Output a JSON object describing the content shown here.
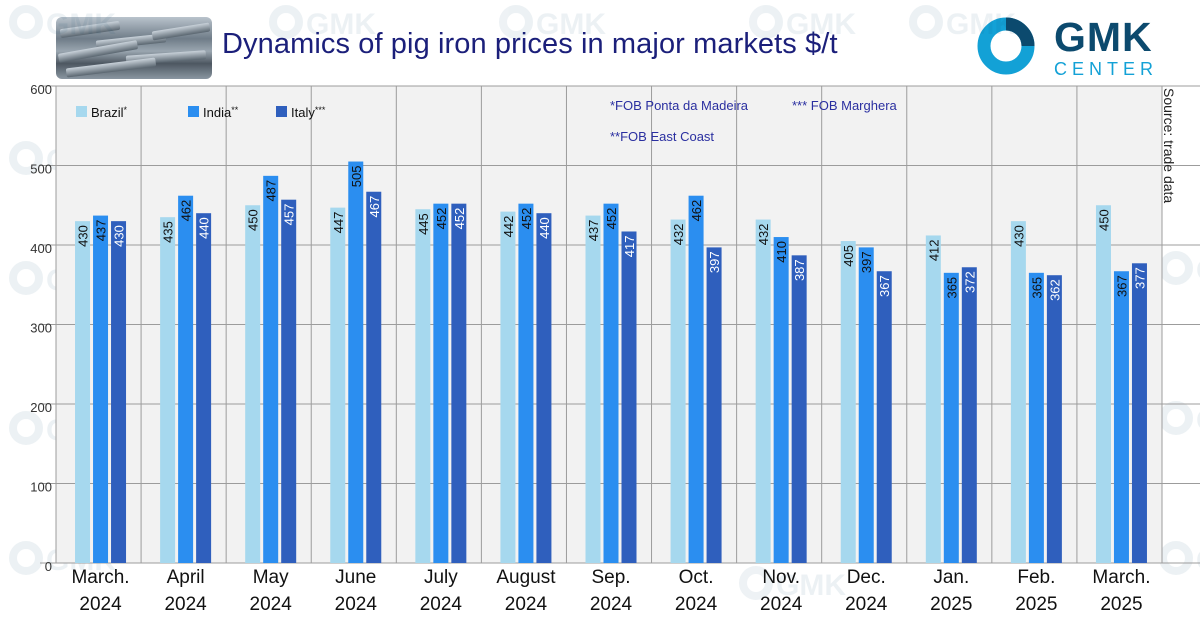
{
  "header": {
    "title": "Dynamics of pig iron prices in major markets $/t",
    "logo_main": "GMK",
    "logo_sub": "CENTER"
  },
  "watermark": "GMK CENTER",
  "notes": {
    "brazil": "*FOB Ponta da Madeira",
    "italy": "*** FOB Marghera",
    "india": "**FOB East Coast"
  },
  "source": "Source: trade data",
  "colors": {
    "title": "#1b1f7a",
    "brazil": "#a6d8ee",
    "india": "#2b8ef0",
    "italy": "#2f5fbd",
    "grid": "#9c9c9c",
    "plot_bg": "#f2f2f2"
  },
  "chart_data": {
    "type": "bar",
    "categories": [
      [
        "March.",
        "2024"
      ],
      [
        "April",
        "2024"
      ],
      [
        "May",
        "2024"
      ],
      [
        "June",
        "2024"
      ],
      [
        "July",
        "2024"
      ],
      [
        "August",
        "2024"
      ],
      [
        "Sep.",
        "2024"
      ],
      [
        "Oct.",
        "2024"
      ],
      [
        "Nov.",
        "2024"
      ],
      [
        "Dec.",
        "2024"
      ],
      [
        "Jan.",
        "2025"
      ],
      [
        "Feb.",
        "2025"
      ],
      [
        "March.",
        "2025"
      ]
    ],
    "series": [
      {
        "name": "Brazil",
        "legend_mark": "*",
        "color": "#a6d8ee",
        "values": [
          430,
          435,
          450,
          447,
          445,
          442,
          437,
          432,
          432,
          405,
          412,
          430,
          450
        ]
      },
      {
        "name": "India",
        "legend_mark": "**",
        "color": "#2b8ef0",
        "values": [
          437,
          462,
          487,
          505,
          452,
          452,
          452,
          462,
          410,
          397,
          365,
          365,
          367
        ]
      },
      {
        "name": "Italy",
        "legend_mark": "***",
        "color": "#2f5fbd",
        "values": [
          430,
          440,
          457,
          467,
          452,
          440,
          417,
          397,
          387,
          367,
          372,
          362,
          377
        ]
      }
    ],
    "yticks": [
      0,
      100,
      200,
      300,
      400,
      500,
      600
    ],
    "ylim": [
      0,
      600
    ],
    "grid": true,
    "legend_position": "top-left"
  }
}
